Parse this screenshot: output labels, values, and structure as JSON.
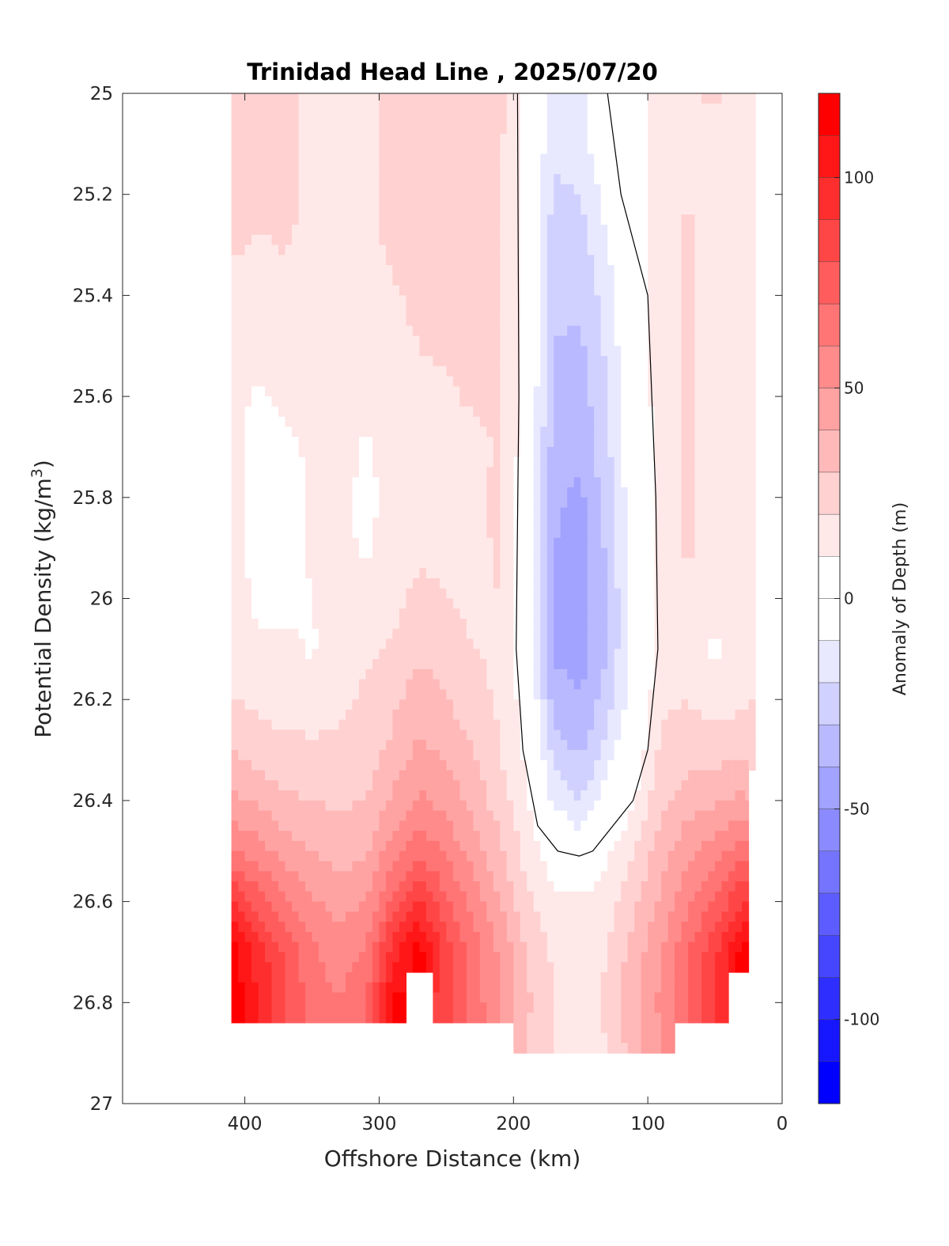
{
  "chart_data": {
    "type": "heatmap",
    "subtype": "filled-contour",
    "title": "Trinidad Head Line , 2025/07/20",
    "xlabel": "Offshore Distance (km)",
    "ylabel_main": "Potential Density (kg/m",
    "ylabel_sup": "3",
    "ylabel_end": ")",
    "colorbar_label": "Anomaly of Depth (m)",
    "xlim": [
      491,
      0
    ],
    "x_reversed": true,
    "ylim": [
      25,
      27
    ],
    "y_reversed": true,
    "xticks": [
      "400",
      "300",
      "200",
      "100",
      "0"
    ],
    "xtick_values": [
      400,
      300,
      200,
      100,
      0
    ],
    "yticks": [
      "25",
      "25.2",
      "25.4",
      "25.6",
      "25.8",
      "26",
      "26.2",
      "26.4",
      "26.6",
      "26.8",
      "27"
    ],
    "ytick_values": [
      25,
      25.2,
      25.4,
      25.6,
      25.8,
      26,
      26.2,
      26.4,
      26.6,
      26.8,
      27
    ],
    "colorbar": {
      "range": [
        -120,
        120
      ],
      "level_step": 10,
      "ticks": [
        "100",
        "50",
        "0",
        "-50",
        "-100"
      ],
      "tick_values": [
        100,
        50,
        0,
        -50,
        -100
      ],
      "positive_color": "#ff0000",
      "negative_color": "#0000ff",
      "neutral_color": "#ffffff",
      "white_band": [
        -10,
        10
      ]
    },
    "grid": {
      "x_km": [
        410,
        390,
        370,
        350,
        330,
        310,
        290,
        270,
        250,
        230,
        210,
        190,
        170,
        150,
        130,
        110,
        90,
        70,
        50,
        30,
        20
      ],
      "density": [
        25.0,
        25.1,
        25.2,
        25.3,
        25.4,
        25.5,
        25.6,
        25.7,
        25.8,
        25.9,
        26.0,
        26.1,
        26.2,
        26.3,
        26.4,
        26.5,
        26.6,
        26.7,
        26.8,
        26.9
      ],
      "anomaly_m": [
        [
          22,
          22,
          22,
          18,
          15,
          15,
          24,
          26,
          26,
          25,
          23,
          5,
          -15,
          -12,
          2,
          5,
          15,
          18,
          22,
          15,
          15
        ],
        [
          22,
          22,
          22,
          18,
          15,
          15,
          24,
          26,
          26,
          25,
          22,
          5,
          -18,
          -15,
          0,
          5,
          15,
          18,
          16,
          15,
          15
        ],
        [
          22,
          22,
          22,
          18,
          15,
          15,
          24,
          26,
          26,
          25,
          22,
          4,
          -22,
          -20,
          -5,
          6,
          15,
          20,
          15,
          15,
          14
        ],
        [
          22,
          19,
          21,
          17,
          15,
          15,
          23,
          26,
          26,
          25,
          22,
          4,
          -25,
          -24,
          -10,
          5,
          15,
          22,
          15,
          15,
          14
        ],
        [
          15,
          15,
          15,
          15,
          15,
          15,
          18,
          24,
          25,
          25,
          22,
          3,
          -28,
          -28,
          -15,
          5,
          15,
          22,
          15,
          15,
          14
        ],
        [
          15,
          15,
          15,
          15,
          15,
          15,
          16,
          20,
          22,
          24,
          22,
          3,
          -30,
          -32,
          -18,
          3,
          15,
          22,
          15,
          15,
          14
        ],
        [
          14,
          8,
          12,
          14,
          15,
          15,
          16,
          18,
          18,
          22,
          22,
          3,
          -32,
          -35,
          -20,
          2,
          15,
          22,
          15,
          15,
          14
        ],
        [
          14,
          6,
          8,
          12,
          15,
          8,
          16,
          17,
          19,
          16,
          22,
          3,
          -35,
          -38,
          -22,
          0,
          15,
          22,
          15,
          15,
          14
        ],
        [
          14,
          6,
          5,
          11,
          15,
          6,
          15,
          16,
          18,
          18,
          22,
          2,
          -38,
          -42,
          -25,
          -2,
          15,
          22,
          15,
          15,
          14
        ],
        [
          14,
          7,
          6,
          11,
          14,
          8,
          15,
          16,
          18,
          18,
          21,
          2,
          -40,
          -45,
          -28,
          -3,
          15,
          21,
          15,
          15,
          14
        ],
        [
          14,
          8,
          7,
          10,
          14,
          13,
          16,
          25,
          20,
          18,
          20,
          2,
          -42,
          -45,
          -30,
          -4,
          15,
          20,
          15,
          15,
          15
        ],
        [
          15,
          12,
          12,
          9,
          15,
          18,
          22,
          28,
          25,
          20,
          18,
          2,
          -42,
          -44,
          -30,
          -4,
          15,
          18,
          8,
          13,
          17
        ],
        [
          20,
          18,
          16,
          15,
          17,
          22,
          28,
          35,
          30,
          24,
          18,
          5,
          -35,
          -40,
          -25,
          -2,
          18,
          20,
          15,
          18,
          20
        ],
        [
          30,
          25,
          22,
          22,
          22,
          25,
          32,
          42,
          38,
          30,
          20,
          8,
          -25,
          -32,
          -15,
          2,
          22,
          25,
          25,
          28,
          28
        ],
        [
          42,
          38,
          32,
          30,
          28,
          30,
          42,
          52,
          46,
          36,
          25,
          12,
          -12,
          -20,
          -5,
          10,
          28,
          35,
          38,
          42,
          null
        ],
        [
          62,
          55,
          45,
          40,
          35,
          38,
          55,
          68,
          58,
          45,
          32,
          15,
          5,
          -2,
          8,
          20,
          35,
          48,
          55,
          65,
          null
        ],
        [
          90,
          75,
          62,
          52,
          45,
          50,
          72,
          90,
          72,
          56,
          40,
          22,
          12,
          12,
          15,
          28,
          42,
          58,
          70,
          90,
          null
        ],
        [
          115,
          95,
          78,
          62,
          55,
          62,
          95,
          115,
          85,
          65,
          48,
          30,
          18,
          15,
          20,
          35,
          50,
          70,
          88,
          115,
          null
        ],
        [
          118,
          100,
          82,
          65,
          60,
          68,
          112,
          null,
          88,
          66,
          50,
          32,
          20,
          16,
          22,
          38,
          52,
          72,
          92,
          null,
          null
        ],
        [
          null,
          null,
          null,
          null,
          null,
          null,
          null,
          null,
          null,
          null,
          null,
          30,
          20,
          15,
          20,
          35,
          50,
          null,
          null,
          null,
          null
        ]
      ]
    },
    "zero_contour": [
      [
        197,
        25.0
      ],
      [
        196,
        25.6
      ],
      [
        198,
        26.1
      ],
      [
        193,
        26.3
      ],
      [
        182,
        26.45
      ],
      [
        167,
        26.5
      ],
      [
        151,
        26.51
      ],
      [
        141,
        26.5
      ],
      [
        129,
        26.46
      ],
      [
        111,
        26.4
      ],
      [
        100,
        26.3
      ],
      [
        92.5,
        26.1
      ],
      [
        94,
        25.8
      ],
      [
        100,
        25.4
      ],
      [
        120,
        25.2
      ],
      [
        130,
        25.0
      ]
    ]
  }
}
